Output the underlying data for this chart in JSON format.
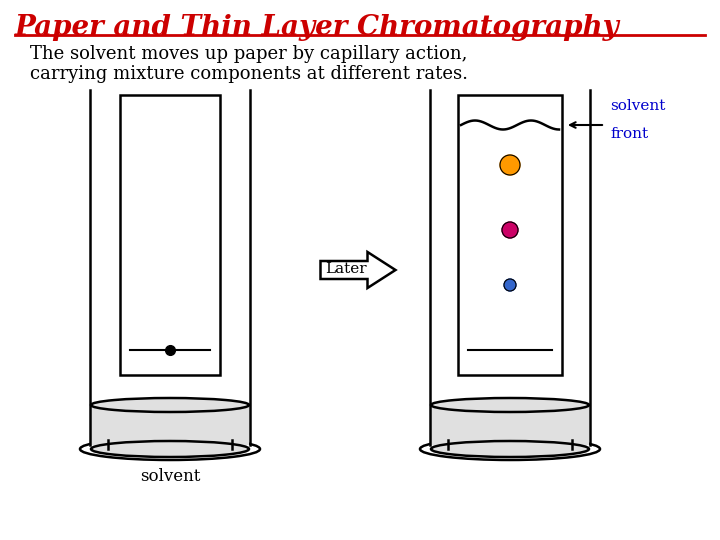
{
  "title": "Paper and Thin Layer Chromatography",
  "title_color": "#cc0000",
  "title_fontsize": 20,
  "subtitle_line1": "The solvent moves up paper by capillary action,",
  "subtitle_line2": "carrying mixture components at different rates.",
  "subtitle_color": "#000000",
  "subtitle_fontsize": 13,
  "bg_color": "#ffffff",
  "arrow_label": "Later",
  "solvent_label": "solvent",
  "solvent_front_label1": "solvent",
  "solvent_front_label2": "front",
  "solvent_front_color": "#0000cc",
  "dot_colors": [
    "#ff9900",
    "#cc0066",
    "#3366cc"
  ],
  "dot_sizes": [
    10,
    8,
    6
  ],
  "label_color": "#000000",
  "lw": 1.8
}
